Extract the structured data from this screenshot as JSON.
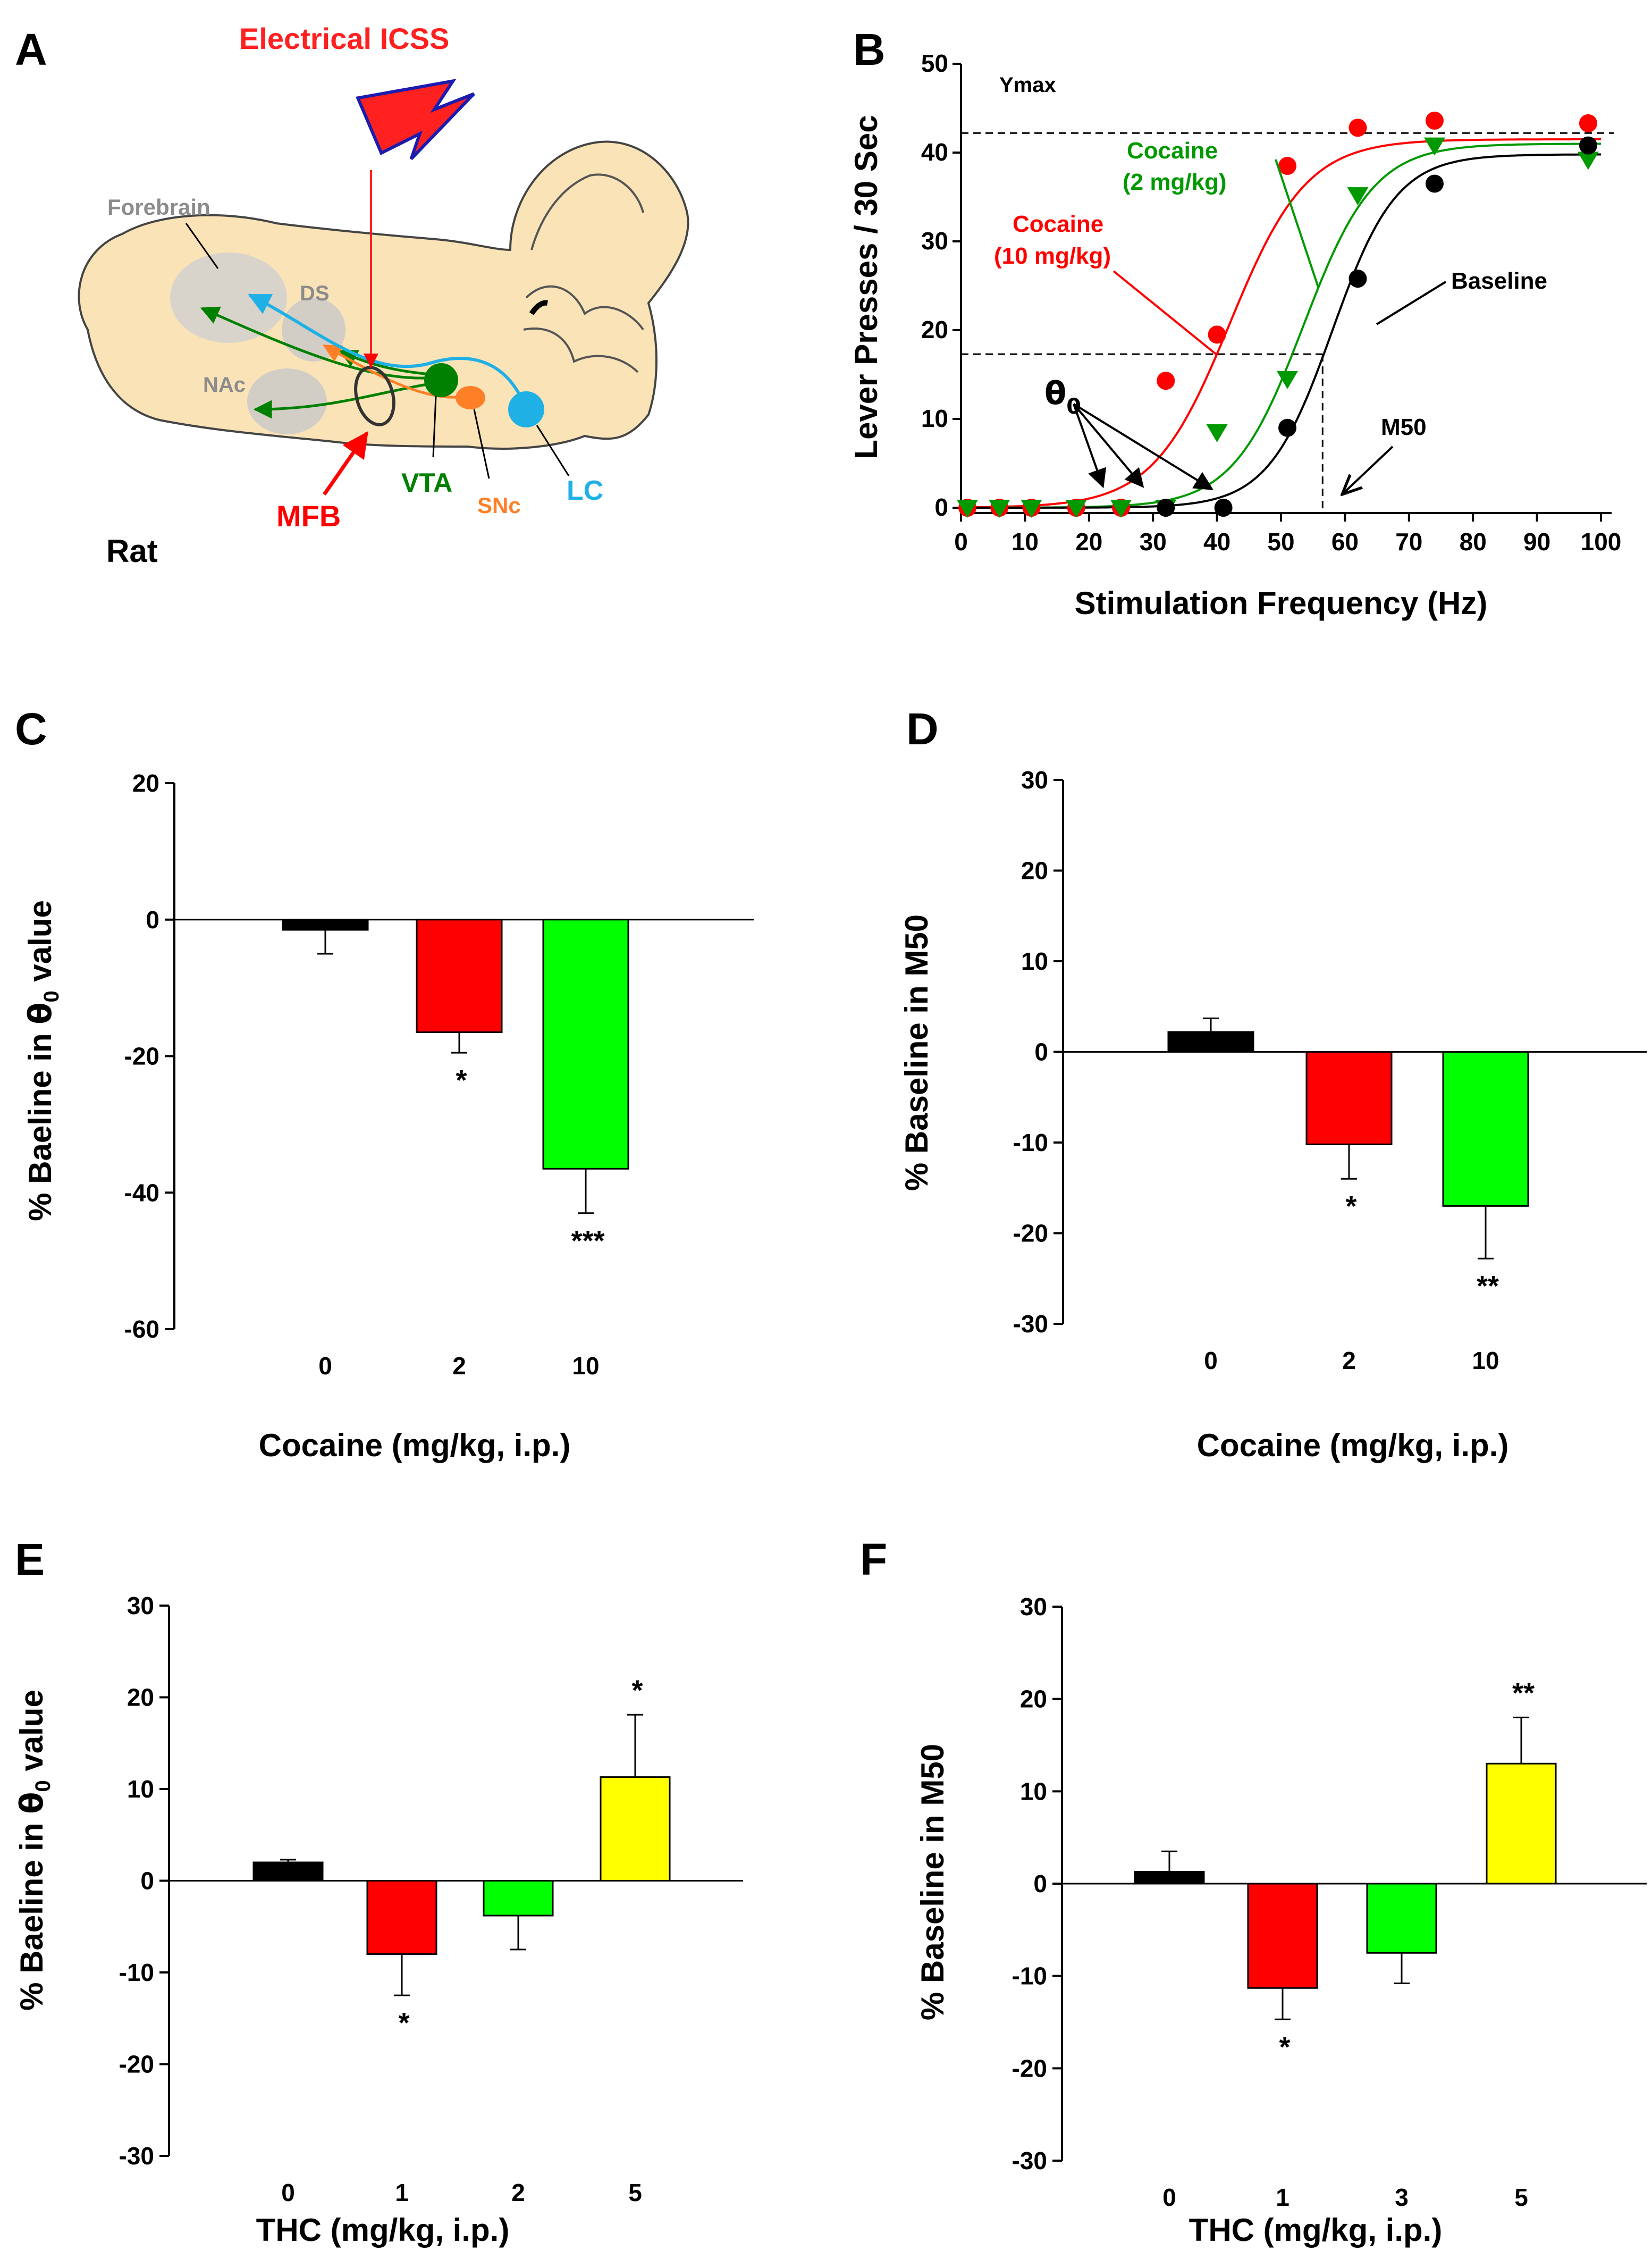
{
  "panels": {
    "a": {
      "letter": "A",
      "stim_label": "Electrical ICSS",
      "regions": {
        "forebrain": "Forebrain",
        "ds": "DS",
        "nac": "NAc",
        "vta": "VTA",
        "snc": "SNc",
        "lc": "LC",
        "mfb": "MFB"
      },
      "species": "Rat",
      "colors": {
        "brain": "#fbe3b8",
        "red": "#ff0000",
        "green": "#008000",
        "orange": "#ff7f27",
        "blue": "#1fb0e6"
      }
    },
    "b": {
      "letter": "B",
      "ymax_label": "Ymax",
      "theta_label": "θ",
      "theta_sub": "0",
      "m50_label": "M50",
      "series_labels": {
        "coc2_line1": "Cocaine",
        "coc2_line2": "(2 mg/kg)",
        "coc10_line1": "Cocaine",
        "coc10_line2": "(10 mg/kg)",
        "baseline": "Baseline"
      }
    },
    "c": {
      "letter": "C",
      "xtitle": "Cocaine (mg/kg, i.p.)",
      "ytitle_pre": "% Baeline in ",
      "ytitle_theta": "θ",
      "ytitle_sub": "0",
      "ytitle_post": " value"
    },
    "d": {
      "letter": "D",
      "xtitle": "Cocaine (mg/kg, i.p.)",
      "ytitle": "% Baseline in M50"
    },
    "e": {
      "letter": "E",
      "xtitle": "THC (mg/kg, i.p.)",
      "ytitle_pre": "% Baeline in ",
      "ytitle_theta": "θ",
      "ytitle_sub": "0",
      "ytitle_post": " value"
    },
    "f": {
      "letter": "F",
      "xtitle": "THC (mg/kg, i.p.)",
      "ytitle": "% Baseline in M50"
    }
  },
  "chart_data": [
    {
      "id": "B",
      "type": "scatter",
      "xlabel": "Stimulation Frequency (Hz)",
      "ylabel": "Lever Presses / 30 Sec",
      "xlim": [
        0,
        100
      ],
      "ylim": [
        0,
        50
      ],
      "xticks": [
        0,
        10,
        20,
        30,
        40,
        50,
        60,
        70,
        80,
        90,
        100
      ],
      "yticks": [
        0,
        10,
        20,
        30,
        40,
        50
      ],
      "ymax_value": 42.2,
      "theta_value": 17.3,
      "m50_value": 56.5,
      "series": [
        {
          "name": "Cocaine (10 mg/kg)",
          "color": "#ff0000",
          "marker": "circle",
          "x": [
            1,
            6,
            11,
            18,
            25,
            32,
            40,
            51,
            62,
            74,
            98
          ],
          "y": [
            0,
            0,
            0,
            0,
            0,
            14.3,
            19.5,
            38.5,
            42.8,
            43.6,
            43.3
          ],
          "fit": {
            "ymax": 41.5,
            "x50": 42,
            "slope": 6
          }
        },
        {
          "name": "Cocaine (2 mg/kg)",
          "color": "#009900",
          "marker": "triangle-down",
          "x": [
            1,
            6,
            11,
            18,
            25,
            32,
            40,
            51,
            62,
            74,
            98
          ],
          "y": [
            0,
            0,
            0,
            0,
            0,
            0,
            8.5,
            14.5,
            35.2,
            40.8,
            39.2
          ],
          "fit": {
            "ymax": 41,
            "x50": 53.5,
            "slope": 5.5
          }
        },
        {
          "name": "Baseline",
          "color": "#000000",
          "marker": "circle",
          "x": [
            32,
            41,
            51,
            62,
            74,
            98
          ],
          "y": [
            0,
            0,
            9,
            25.8,
            36.5,
            40.8
          ],
          "fit": {
            "ymax": 39.8,
            "x50": 58,
            "slope": 5
          }
        }
      ]
    },
    {
      "id": "C",
      "type": "bar",
      "categories": [
        "0",
        "2",
        "10"
      ],
      "values": [
        -1.5,
        -16.5,
        -36.5
      ],
      "errors": [
        3.5,
        3,
        6.5
      ],
      "colors": [
        "#000000",
        "#ff0000",
        "#00ff00"
      ],
      "significance": [
        "",
        "*",
        "***"
      ],
      "ylim": [
        -60,
        20
      ],
      "yticks": [
        20,
        0,
        -20,
        -40,
        -60
      ],
      "xlabel": "Cocaine (mg/kg, i.p.)",
      "ylabel": "% Baeline in θ0 value"
    },
    {
      "id": "D",
      "type": "bar",
      "categories": [
        "0",
        "2",
        "10"
      ],
      "values": [
        2.2,
        -10.2,
        -17
      ],
      "errors": [
        1.5,
        3.8,
        5.8
      ],
      "colors": [
        "#000000",
        "#ff0000",
        "#00ff00"
      ],
      "significance": [
        "",
        "*",
        "**"
      ],
      "ylim": [
        -30,
        30
      ],
      "yticks": [
        30,
        20,
        10,
        0,
        -10,
        -20,
        -30
      ],
      "xlabel": "Cocaine (mg/kg, i.p.)",
      "ylabel": "% Baseline in M50"
    },
    {
      "id": "E",
      "type": "bar",
      "categories": [
        "0",
        "1",
        "2",
        "5"
      ],
      "values": [
        2,
        -8,
        -3.8,
        11.3
      ],
      "errors": [
        0.3,
        4.5,
        3.7,
        6.8
      ],
      "colors": [
        "#000000",
        "#ff0000",
        "#00ff00",
        "#ffff00"
      ],
      "significance": [
        "",
        "*",
        "",
        "*"
      ],
      "ylim": [
        -30,
        30
      ],
      "yticks": [
        30,
        20,
        10,
        0,
        -10,
        -20,
        -30
      ],
      "xlabel": "THC (mg/kg, i.p.)",
      "ylabel": "% Baeline in θ0 value"
    },
    {
      "id": "F",
      "type": "bar",
      "categories": [
        "0",
        "1",
        "3",
        "5"
      ],
      "values": [
        1.3,
        -11.3,
        -7.5,
        13
      ],
      "errors": [
        2.2,
        3.4,
        3.3,
        5
      ],
      "colors": [
        "#000000",
        "#ff0000",
        "#00ff00",
        "#ffff00"
      ],
      "significance": [
        "",
        "*",
        "",
        "**"
      ],
      "ylim": [
        -30,
        30
      ],
      "yticks": [
        30,
        20,
        10,
        0,
        -10,
        -20,
        -30
      ],
      "xlabel": "THC (mg/kg, i.p.)",
      "ylabel": "% Baseline in M50"
    }
  ]
}
